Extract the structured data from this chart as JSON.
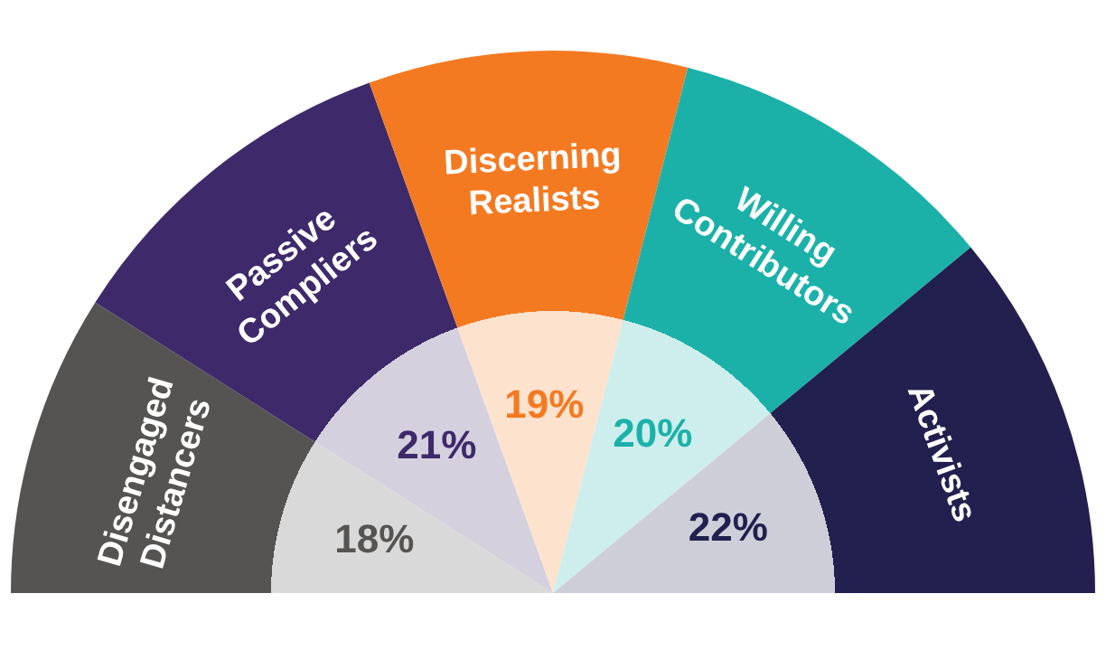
{
  "chart_data": {
    "type": "pie",
    "categories": [
      "Disengaged Distancers",
      "Passive Compliers",
      "Discerning Realists",
      "Willing Contributors",
      "Activists"
    ],
    "values": [
      18,
      21,
      19,
      20,
      22
    ],
    "colors": [
      "#555453",
      "#3e2a6a",
      "#f47a22",
      "#1bb1a9",
      "#22204f"
    ],
    "value_labels": [
      "18%",
      "21%",
      "19%",
      "20%",
      "22%"
    ]
  }
}
